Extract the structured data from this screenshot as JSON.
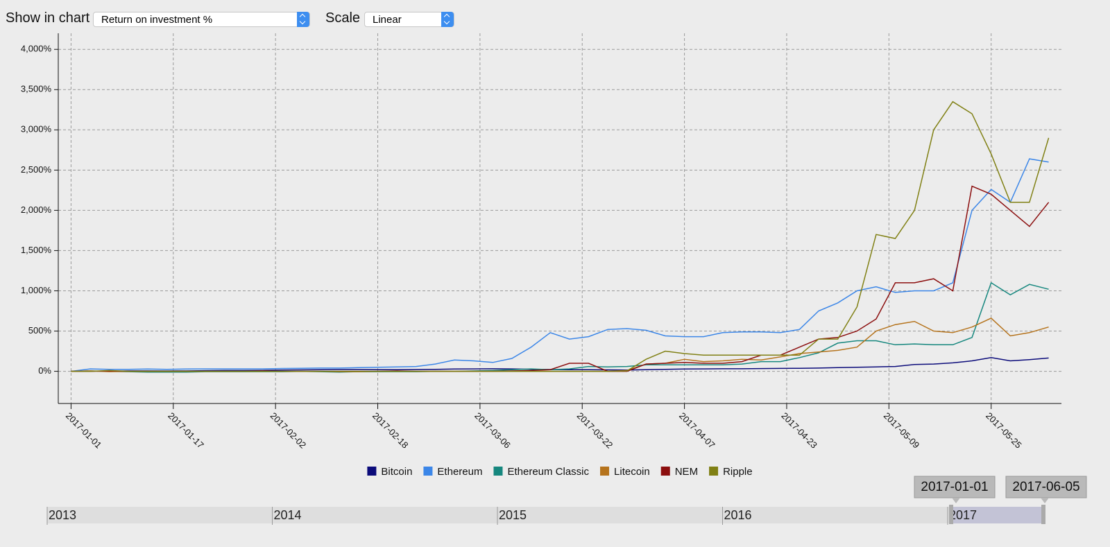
{
  "ui": {
    "show_label": "Show in chart",
    "show_value": "Return on investment %",
    "scale_label": "Scale",
    "scale_value": "Linear",
    "range_years": [
      "2013",
      "2014",
      "2015",
      "2016",
      "2017"
    ],
    "range_start": "2017-01-01",
    "range_end": "2017-06-05"
  },
  "chart_data": {
    "type": "line",
    "x": [
      "2017-01-01",
      "2017-01-04",
      "2017-01-07",
      "2017-01-10",
      "2017-01-13",
      "2017-01-16",
      "2017-01-19",
      "2017-01-22",
      "2017-01-25",
      "2017-01-28",
      "2017-01-31",
      "2017-02-03",
      "2017-02-06",
      "2017-02-09",
      "2017-02-12",
      "2017-02-15",
      "2017-02-18",
      "2017-02-21",
      "2017-02-24",
      "2017-02-27",
      "2017-03-02",
      "2017-03-05",
      "2017-03-08",
      "2017-03-11",
      "2017-03-14",
      "2017-03-17",
      "2017-03-20",
      "2017-03-23",
      "2017-03-26",
      "2017-03-29",
      "2017-04-01",
      "2017-04-04",
      "2017-04-07",
      "2017-04-10",
      "2017-04-13",
      "2017-04-16",
      "2017-04-19",
      "2017-04-22",
      "2017-04-25",
      "2017-04-28",
      "2017-05-01",
      "2017-05-04",
      "2017-05-07",
      "2017-05-10",
      "2017-05-13",
      "2017-05-16",
      "2017-05-19",
      "2017-05-22",
      "2017-05-25",
      "2017-05-28",
      "2017-05-31",
      "2017-06-03"
    ],
    "series": [
      {
        "name": "Bitcoin",
        "color": "#0b0b7a",
        "values": [
          0,
          2,
          3,
          5,
          5,
          4,
          5,
          8,
          10,
          10,
          12,
          15,
          18,
          20,
          22,
          22,
          20,
          20,
          22,
          25,
          28,
          30,
          32,
          30,
          25,
          22,
          20,
          20,
          18,
          15,
          20,
          25,
          28,
          30,
          32,
          32,
          34,
          36,
          38,
          40,
          45,
          50,
          55,
          60,
          85,
          90,
          105,
          130,
          170,
          130,
          145,
          165
        ]
      },
      {
        "name": "Ethereum",
        "color": "#3b86e8",
        "values": [
          0,
          30,
          25,
          25,
          28,
          25,
          28,
          30,
          30,
          30,
          30,
          35,
          38,
          40,
          40,
          45,
          50,
          55,
          60,
          90,
          140,
          130,
          110,
          160,
          300,
          480,
          400,
          430,
          520,
          530,
          510,
          440,
          430,
          430,
          480,
          490,
          490,
          480,
          520,
          750,
          850,
          1000,
          1050,
          980,
          1000,
          1000,
          1100,
          2000,
          2260,
          2100,
          2640,
          2600
        ]
      },
      {
        "name": "Ethereum Classic",
        "color": "#16877e",
        "values": [
          0,
          5,
          0,
          -5,
          -10,
          -10,
          -10,
          -5,
          -5,
          -5,
          -5,
          -5,
          0,
          -5,
          -10,
          -5,
          -5,
          -5,
          -5,
          0,
          0,
          5,
          10,
          20,
          30,
          20,
          30,
          60,
          55,
          60,
          80,
          80,
          80,
          80,
          80,
          90,
          120,
          120,
          170,
          230,
          350,
          380,
          380,
          330,
          340,
          330,
          330,
          420,
          1100,
          950,
          1080,
          1020
        ]
      },
      {
        "name": "Litecoin",
        "color": "#b5731c",
        "values": [
          0,
          5,
          -5,
          0,
          0,
          0,
          0,
          0,
          0,
          0,
          0,
          0,
          0,
          0,
          -5,
          -5,
          0,
          0,
          0,
          0,
          0,
          0,
          0,
          0,
          0,
          0,
          0,
          0,
          0,
          10,
          90,
          100,
          150,
          120,
          130,
          150,
          140,
          180,
          220,
          240,
          260,
          300,
          500,
          580,
          620,
          500,
          480,
          550,
          660,
          440,
          480,
          550
        ]
      },
      {
        "name": "NEM",
        "color": "#8b0e0e",
        "values": [
          0,
          0,
          5,
          0,
          0,
          0,
          0,
          0,
          0,
          0,
          5,
          0,
          0,
          0,
          0,
          0,
          0,
          5,
          0,
          0,
          0,
          0,
          0,
          5,
          10,
          20,
          100,
          100,
          0,
          0,
          90,
          100,
          110,
          100,
          100,
          120,
          200,
          200,
          300,
          400,
          420,
          500,
          650,
          1100,
          1100,
          1150,
          1000,
          2300,
          2200,
          2000,
          1800,
          2100
        ]
      },
      {
        "name": "Ripple",
        "color": "#808014",
        "values": [
          0,
          0,
          10,
          0,
          0,
          0,
          0,
          0,
          0,
          0,
          0,
          0,
          0,
          0,
          0,
          0,
          0,
          0,
          0,
          0,
          0,
          0,
          0,
          0,
          0,
          0,
          0,
          0,
          0,
          5,
          150,
          250,
          220,
          200,
          200,
          200,
          200,
          200,
          200,
          400,
          400,
          800,
          1700,
          1650,
          2000,
          3000,
          3350,
          3200,
          2700,
          2100,
          2100,
          2900
        ]
      }
    ],
    "xlim": [
      "2016-12-30",
      "2017-06-05"
    ],
    "xticks": [
      "2017-01-01",
      "2017-01-17",
      "2017-02-02",
      "2017-02-18",
      "2017-03-06",
      "2017-03-22",
      "2017-04-07",
      "2017-04-23",
      "2017-05-09",
      "2017-05-25"
    ],
    "ylim": [
      -400,
      4200
    ],
    "yticks": [
      {
        "value": 0,
        "label": "0%"
      },
      {
        "value": 500,
        "label": "500%"
      },
      {
        "value": 1000,
        "label": "1,000%"
      },
      {
        "value": 1500,
        "label": "1,500%"
      },
      {
        "value": 2000,
        "label": "2,000%"
      },
      {
        "value": 2500,
        "label": "2,500%"
      },
      {
        "value": 3000,
        "label": "3,000%"
      },
      {
        "value": 3500,
        "label": "3,500%"
      },
      {
        "value": 4000,
        "label": "4,000%"
      }
    ],
    "grid": true
  }
}
